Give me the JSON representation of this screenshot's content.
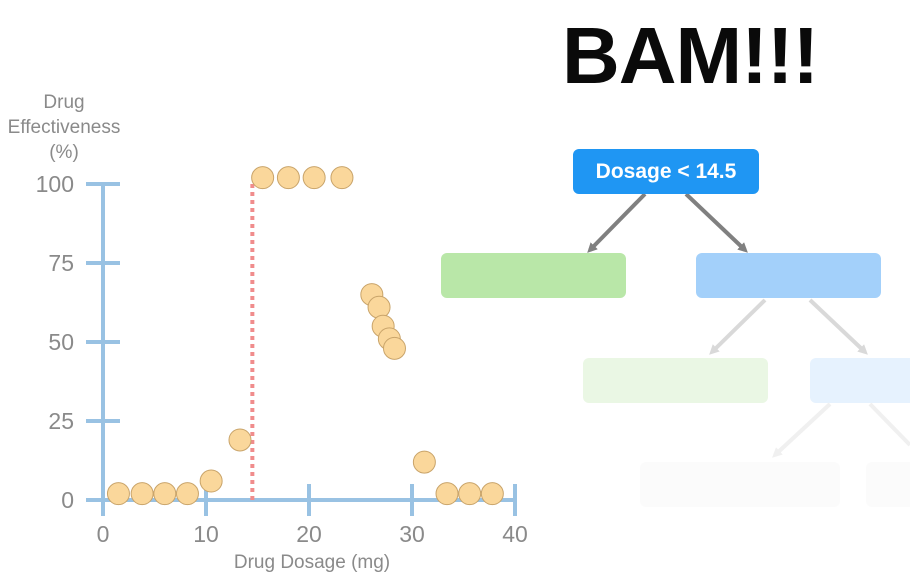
{
  "headline": "BAM!!!",
  "tree": {
    "root_label": "Dosage < 14.5",
    "colors": {
      "root": "#1f96f3",
      "leaf_green": "#b9e7a8",
      "leaf_blue": "#a3d0fa",
      "arrow": "#808080"
    }
  },
  "chart_data": {
    "type": "scatter",
    "title": "",
    "xlabel": "Drug Dosage (mg)",
    "ylabel_lines": [
      "Drug",
      "Effectiveness",
      "(%)"
    ],
    "xlim": [
      0,
      40
    ],
    "ylim": [
      0,
      100
    ],
    "x_ticks": [
      0,
      10,
      20,
      30,
      40
    ],
    "y_ticks": [
      0,
      25,
      50,
      75,
      100
    ],
    "grid": false,
    "threshold": {
      "x": 14.5,
      "style": "dotted",
      "color": "#f08c8c"
    },
    "point_color": "#fad79b",
    "axis_color": "#99c2e3",
    "points": [
      {
        "x": 1.5,
        "y": 2
      },
      {
        "x": 3.8,
        "y": 2
      },
      {
        "x": 6,
        "y": 2
      },
      {
        "x": 8.2,
        "y": 2
      },
      {
        "x": 10.5,
        "y": 6
      },
      {
        "x": 13.3,
        "y": 19
      },
      {
        "x": 15.5,
        "y": 102
      },
      {
        "x": 18,
        "y": 102
      },
      {
        "x": 20.5,
        "y": 102
      },
      {
        "x": 23.2,
        "y": 102
      },
      {
        "x": 26.1,
        "y": 65
      },
      {
        "x": 26.8,
        "y": 61
      },
      {
        "x": 27.2,
        "y": 55
      },
      {
        "x": 27.8,
        "y": 51
      },
      {
        "x": 28.3,
        "y": 48
      },
      {
        "x": 31.2,
        "y": 12
      },
      {
        "x": 33.4,
        "y": 2
      },
      {
        "x": 35.6,
        "y": 2
      },
      {
        "x": 37.8,
        "y": 2
      }
    ]
  }
}
